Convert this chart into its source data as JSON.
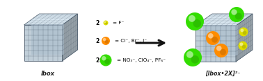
{
  "bg_color": "#ffffff",
  "lbox_label": "lbox",
  "product_label": "[lbox•2X]²⁻",
  "legend_rows": [
    {
      "num": "2",
      "color": "#dddd00",
      "r": 3.5,
      "text": "= F⁻"
    },
    {
      "num": "2",
      "color": "#ff8c00",
      "r": 6.0,
      "text": "= Cl⁻, Br⁻, I⁻"
    },
    {
      "num": "2",
      "color": "#33dd00",
      "r": 8.0,
      "text": "= NO₃⁻, ClO₄⁻, PF₆⁻"
    }
  ],
  "arrow_color": "#111111",
  "box_face_color": "#c0ced8",
  "box_edge_color": "#4a5a6a",
  "box_grid_color": "#3a4a5a",
  "box_inner_color": "#aabccc",
  "sphere_yellow": "#dddd00",
  "sphere_orange": "#ff8c00",
  "sphere_green": "#33dd00",
  "label_fontsize": 6.0,
  "legend_fontsize": 5.2,
  "num_fontsize": 5.5
}
